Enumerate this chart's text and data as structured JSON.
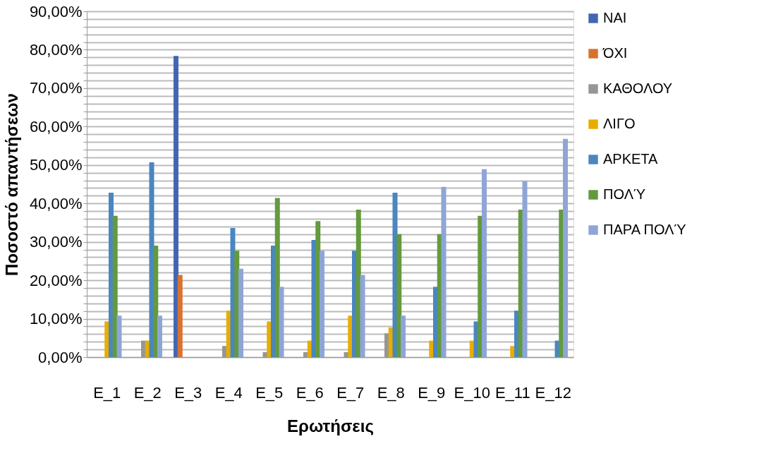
{
  "chart_data": {
    "type": "bar",
    "xlabel": "Ερωτήσεις",
    "ylabel": "Ποσοστό απαντήσεων",
    "categories": [
      "E_1",
      "E_2",
      "E_3",
      "E_4",
      "E_5",
      "E_6",
      "E_7",
      "E_8",
      "E_9",
      "E_10",
      "E_11",
      "E_12"
    ],
    "series": [
      {
        "name": "ΝΑΙ",
        "color": "#4267b0",
        "values": [
          null,
          null,
          78.4,
          null,
          null,
          null,
          null,
          null,
          null,
          null,
          null,
          null
        ]
      },
      {
        "name": "ΌΧΙ",
        "color": "#d9722e",
        "values": [
          null,
          null,
          21.4,
          null,
          null,
          null,
          null,
          null,
          null,
          null,
          null,
          null
        ]
      },
      {
        "name": "ΚΑΘΟΛΟΥ",
        "color": "#969696",
        "values": [
          null,
          4.3,
          null,
          2.9,
          1.3,
          1.3,
          1.3,
          6.2,
          null,
          null,
          null,
          null
        ]
      },
      {
        "name": "ΛΙΓΟ",
        "color": "#e7ad00",
        "values": [
          9.3,
          4.3,
          null,
          12.1,
          9.3,
          4.3,
          10.8,
          7.7,
          4.3,
          4.3,
          2.9,
          null
        ]
      },
      {
        "name": "ΑΡΚΕΤΑ",
        "color": "#4a86c0",
        "values": [
          42.8,
          50.7,
          null,
          33.6,
          29.0,
          30.5,
          27.7,
          42.8,
          18.3,
          9.3,
          12.1,
          4.3
        ]
      },
      {
        "name": "ΠΟΛΎ",
        "color": "#639a3d",
        "values": [
          36.8,
          29.0,
          null,
          27.7,
          41.4,
          35.4,
          38.4,
          32.0,
          32.0,
          36.8,
          38.4,
          38.4
        ]
      },
      {
        "name": "ΠΑΡΑ ΠΟΛΎ",
        "color": "#8ea5d6",
        "values": [
          10.8,
          10.8,
          null,
          23.0,
          18.3,
          27.7,
          21.4,
          10.8,
          44.3,
          48.9,
          45.8,
          56.8
        ]
      }
    ],
    "ylim": [
      0,
      90
    ],
    "yticks": [
      {
        "value": 0,
        "label": "0,00%"
      },
      {
        "value": 2,
        "label": null
      },
      {
        "value": 4,
        "label": null
      },
      {
        "value": 6,
        "label": null
      },
      {
        "value": 8,
        "label": null
      },
      {
        "value": 10,
        "label": "10,00%"
      },
      {
        "value": 12,
        "label": null
      },
      {
        "value": 14,
        "label": null
      },
      {
        "value": 16,
        "label": null
      },
      {
        "value": 18,
        "label": null
      },
      {
        "value": 20,
        "label": "20,00%"
      },
      {
        "value": 22,
        "label": null
      },
      {
        "value": 24,
        "label": null
      },
      {
        "value": 26,
        "label": null
      },
      {
        "value": 28,
        "label": null
      },
      {
        "value": 30,
        "label": "30,00%"
      },
      {
        "value": 32,
        "label": null
      },
      {
        "value": 34,
        "label": null
      },
      {
        "value": 36,
        "label": null
      },
      {
        "value": 38,
        "label": null
      },
      {
        "value": 40,
        "label": "40,00%"
      },
      {
        "value": 42,
        "label": null
      },
      {
        "value": 44,
        "label": null
      },
      {
        "value": 46,
        "label": null
      },
      {
        "value": 48,
        "label": null
      },
      {
        "value": 50,
        "label": "50,00%"
      },
      {
        "value": 52,
        "label": null
      },
      {
        "value": 54,
        "label": null
      },
      {
        "value": 56,
        "label": null
      },
      {
        "value": 58,
        "label": null
      },
      {
        "value": 60,
        "label": "60,00%"
      },
      {
        "value": 62,
        "label": null
      },
      {
        "value": 64,
        "label": null
      },
      {
        "value": 66,
        "label": null
      },
      {
        "value": 68,
        "label": null
      },
      {
        "value": 70,
        "label": "70,00%"
      },
      {
        "value": 72,
        "label": null
      },
      {
        "value": 74,
        "label": null
      },
      {
        "value": 76,
        "label": null
      },
      {
        "value": 78,
        "label": null
      },
      {
        "value": 80,
        "label": "80,00%"
      },
      {
        "value": 82,
        "label": null
      },
      {
        "value": 84,
        "label": null
      },
      {
        "value": 86,
        "label": null
      },
      {
        "value": 88,
        "label": null
      },
      {
        "value": 90,
        "label": "90,00%"
      }
    ],
    "grid": "y",
    "legend": "right"
  }
}
